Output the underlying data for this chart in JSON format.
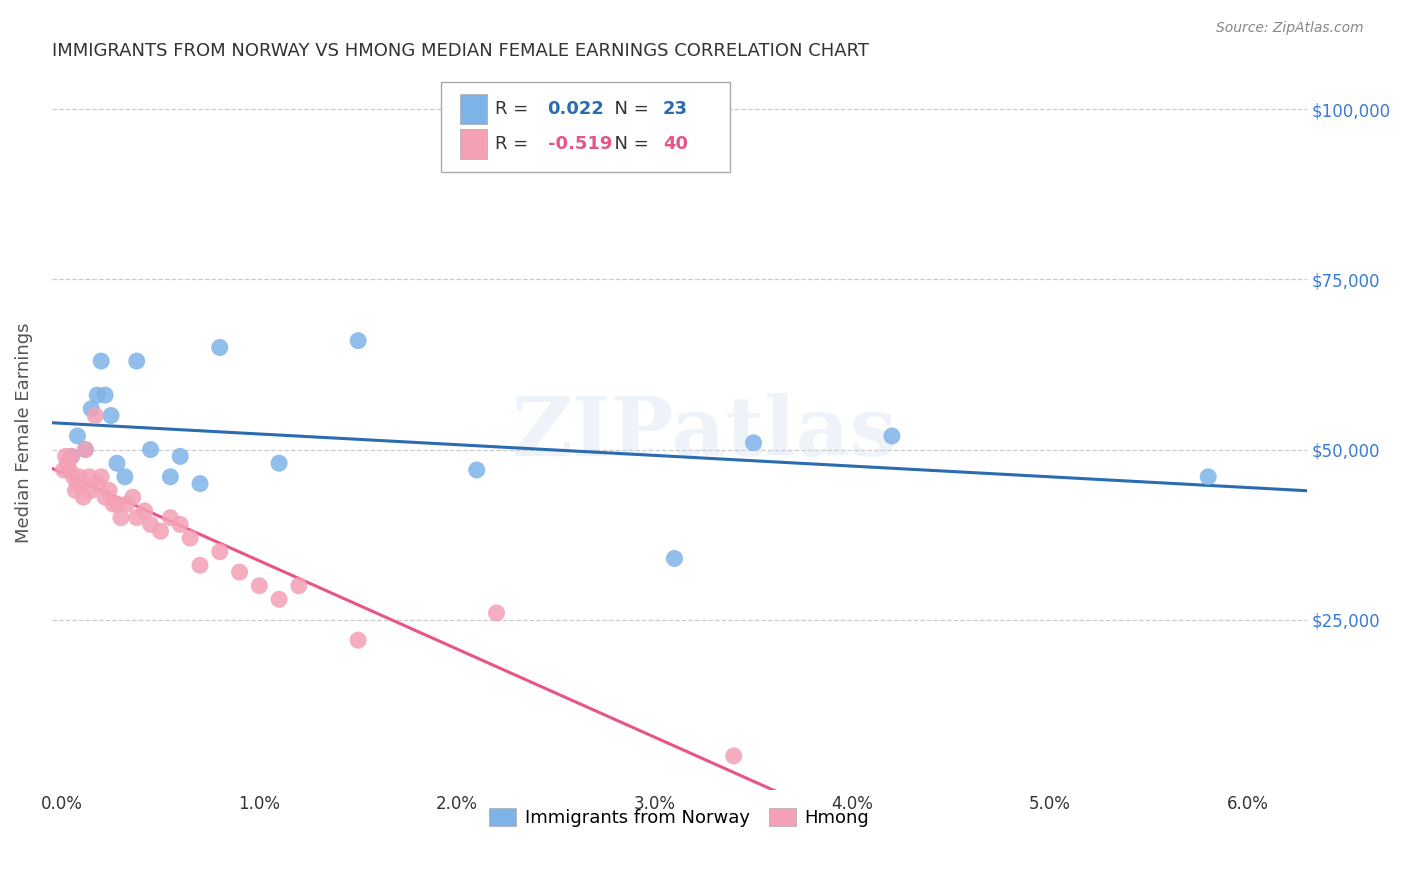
{
  "title": "IMMIGRANTS FROM NORWAY VS HMONG MEDIAN FEMALE EARNINGS CORRELATION CHART",
  "source": "Source: ZipAtlas.com",
  "ylabel": "Median Female Earnings",
  "ylim": [
    0,
    105000
  ],
  "xlim": [
    -0.05,
    6.3
  ],
  "norway_R": 0.022,
  "norway_N": 23,
  "hmong_R": -0.519,
  "hmong_N": 40,
  "norway_color": "#7EB3E8",
  "hmong_color": "#F4A0B5",
  "norway_line_color": "#2B6CB0",
  "hmong_line_color": "#E8548A",
  "grid_color": "#CCCCCC",
  "ytick_color": "#3A7BD5",
  "title_color": "#333333",
  "watermark": "ZIPatlas",
  "norway_x": [
    0.05,
    0.08,
    0.12,
    0.15,
    0.18,
    0.2,
    0.22,
    0.25,
    0.28,
    0.32,
    0.38,
    0.45,
    0.55,
    0.6,
    0.7,
    0.8,
    1.1,
    1.5,
    2.1,
    3.1,
    3.5,
    4.2,
    5.8
  ],
  "norway_y": [
    49000,
    52000,
    50000,
    56000,
    58000,
    63000,
    58000,
    55000,
    48000,
    46000,
    63000,
    50000,
    46000,
    49000,
    45000,
    65000,
    48000,
    66000,
    47000,
    34000,
    51000,
    52000,
    46000
  ],
  "hmong_x": [
    0.01,
    0.02,
    0.03,
    0.04,
    0.05,
    0.06,
    0.07,
    0.08,
    0.09,
    0.1,
    0.11,
    0.12,
    0.14,
    0.15,
    0.17,
    0.18,
    0.2,
    0.22,
    0.24,
    0.26,
    0.28,
    0.3,
    0.33,
    0.36,
    0.38,
    0.42,
    0.45,
    0.5,
    0.55,
    0.6,
    0.65,
    0.7,
    0.8,
    0.9,
    1.0,
    1.1,
    1.2,
    1.5,
    2.2,
    3.4
  ],
  "hmong_y": [
    47000,
    49000,
    48000,
    47000,
    49000,
    46000,
    44000,
    45000,
    46000,
    45000,
    43000,
    50000,
    46000,
    44000,
    55000,
    45000,
    46000,
    43000,
    44000,
    42000,
    42000,
    40000,
    42000,
    43000,
    40000,
    41000,
    39000,
    38000,
    40000,
    39000,
    37000,
    33000,
    35000,
    32000,
    30000,
    28000,
    30000,
    22000,
    26000,
    5000
  ]
}
